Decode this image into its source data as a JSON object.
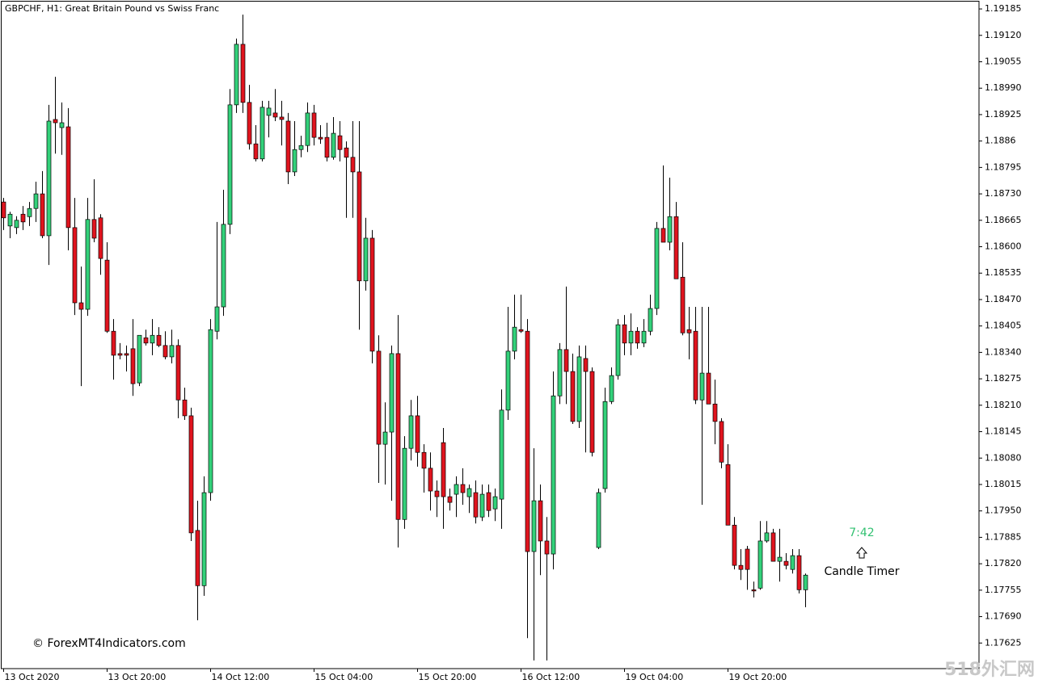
{
  "chart_data": {
    "type": "candlestick",
    "title": "GBPCHF, H1:  Great Britain Pound vs Swiss Franc",
    "categories": [
      "13 Oct 2020",
      null,
      null,
      null,
      null,
      null,
      null,
      null,
      null,
      null,
      null,
      null,
      null,
      null,
      null,
      null,
      "13 Oct 20:00",
      null,
      null,
      null,
      null,
      null,
      null,
      null,
      null,
      null,
      null,
      null,
      null,
      null,
      null,
      null,
      "14 Oct 12:00",
      null,
      null,
      null,
      null,
      null,
      null,
      null,
      null,
      null,
      null,
      null,
      null,
      null,
      null,
      null,
      "15 Oct 04:00",
      null,
      null,
      null,
      null,
      null,
      null,
      null,
      null,
      null,
      null,
      null,
      null,
      null,
      null,
      null,
      "15 Oct 20:00",
      null,
      null,
      null,
      null,
      null,
      null,
      null,
      null,
      null,
      null,
      null,
      null,
      null,
      null,
      null,
      "16 Oct 12:00",
      null,
      null,
      null,
      null,
      null,
      null,
      null,
      null,
      null,
      null,
      null,
      null,
      null,
      null,
      null,
      "19 Oct 04:00",
      null,
      null,
      null,
      null,
      null,
      null,
      null,
      null,
      null,
      null,
      null,
      null,
      null,
      null,
      null,
      "19 Oct 20:00",
      null,
      null,
      null,
      null,
      null,
      null,
      null,
      null,
      null,
      null,
      null,
      null
    ],
    "open": [
      1.1871,
      1.18651,
      1.18647,
      1.1868,
      1.18674,
      1.18694,
      1.1873,
      1.18627,
      1.18913,
      1.18893,
      1.18895,
      1.18647,
      1.18462,
      1.18446,
      1.18667,
      1.18671,
      1.18567,
      1.18392,
      1.18337,
      1.18337,
      1.18349,
      1.18265,
      1.18376,
      1.18363,
      1.18382,
      1.18357,
      1.18329,
      1.18357,
      1.18223,
      1.18184,
      1.17902,
      1.17766,
      1.17995,
      1.18392,
      1.18452,
      1.18655,
      1.18949,
      1.19098,
      1.18955,
      1.18853,
      1.18816,
      1.18923,
      1.18929,
      1.18919,
      1.18909,
      1.18784,
      1.18839,
      1.18849,
      1.18929,
      1.18869,
      1.18869,
      1.1882,
      1.18873,
      1.18843,
      1.1882,
      1.18784,
      1.18516,
      1.18621,
      1.18343,
      1.18114,
      1.18144,
      1.18337,
      1.17929,
      1.18104,
      1.18184,
      1.18094,
      1.18055,
      1.17999,
      1.18118,
      1.17985,
      1.17991,
      1.18015,
      1.17985,
      1.17995,
      1.17935,
      1.17995,
      1.17955,
      1.17979,
      1.18198,
      1.18343,
      1.18396,
      1.18392,
      1.1785,
      1.17975,
      1.17876,
      1.17844,
      1.18233,
      1.18347,
      1.18293,
      1.1817,
      1.18325,
      1.18293,
      1.1786,
      1.18005,
      1.18219,
      1.18283,
      1.18408,
      1.18363,
      1.18392,
      1.18363,
      1.18392,
      1.18448,
      1.18645,
      1.18611,
      1.18674,
      1.18525,
      1.18396,
      1.18392,
      1.18223,
      1.18289,
      1.18213,
      1.1817,
      1.18064,
      1.17915,
      1.17816,
      1.17856,
      1.17756,
      1.1776,
      1.17876,
      1.17896,
      1.17826,
      1.17826,
      1.17806,
      1.1784,
      1.17756
    ],
    "high": [
      1.1872,
      1.18686,
      1.18675,
      1.187,
      1.1871,
      1.1876,
      1.18786,
      1.18949,
      1.19018,
      1.18955,
      1.18941,
      1.1872,
      1.18551,
      1.1872,
      1.18766,
      1.1868,
      1.18611,
      1.18422,
      1.18363,
      1.18357,
      1.18422,
      1.18382,
      1.18396,
      1.18422,
      1.18402,
      1.18392,
      1.18396,
      1.18372,
      1.18253,
      1.18204,
      1.17975,
      1.18035,
      1.18422,
      1.18661,
      1.1874,
      1.18988,
      1.19112,
      1.19171,
      1.18998,
      1.18899,
      1.18959,
      1.18959,
      1.18988,
      1.18959,
      1.18929,
      1.18909,
      1.18873,
      1.18955,
      1.18949,
      1.18899,
      1.18905,
      1.18919,
      1.18909,
      1.18859,
      1.18909,
      1.18909,
      1.18671,
      1.18641,
      1.18382,
      1.18217,
      1.18357,
      1.18432,
      1.18134,
      1.18223,
      1.18233,
      1.18114,
      1.18094,
      1.18025,
      1.18154,
      1.18005,
      1.18035,
      1.18055,
      1.18015,
      1.18025,
      1.18015,
      1.18015,
      1.18005,
      1.18249,
      1.18452,
      1.18482,
      1.18482,
      1.18422,
      1.18104,
      1.18015,
      1.17935,
      1.18293,
      1.18363,
      1.18502,
      1.18337,
      1.18357,
      1.18357,
      1.18303,
      1.18005,
      1.18253,
      1.18303,
      1.18422,
      1.18432,
      1.18436,
      1.18402,
      1.18422,
      1.18482,
      1.18661,
      1.188,
      1.1877,
      1.1871,
      1.18611,
      1.18452,
      1.18452,
      1.18452,
      1.18452,
      1.18273,
      1.18178,
      1.18114,
      1.17935,
      1.17856,
      1.17864,
      1.17776,
      1.17925,
      1.17925,
      1.17906,
      1.17906,
      1.17846,
      1.17856,
      1.17856,
      1.17796
    ],
    "low": [
      1.18641,
      1.18621,
      1.18631,
      1.18641,
      1.18651,
      1.18661,
      1.18621,
      1.18555,
      1.18829,
      1.18826,
      1.18591,
      1.18432,
      1.18257,
      1.1843,
      1.18611,
      1.18531,
      1.18388,
      1.18273,
      1.18323,
      1.18293,
      1.18233,
      1.18257,
      1.18357,
      1.18333,
      1.18353,
      1.18323,
      1.18313,
      1.18178,
      1.18174,
      1.17876,
      1.17681,
      1.17741,
      1.17975,
      1.18372,
      1.1843,
      1.18631,
      1.18929,
      1.18929,
      1.18839,
      1.1881,
      1.1881,
      1.18869,
      1.18909,
      1.18849,
      1.18754,
      1.18774,
      1.1882,
      1.18833,
      1.18849,
      1.18853,
      1.1881,
      1.18814,
      1.1881,
      1.18671,
      1.18671,
      1.18396,
      1.18492,
      1.18313,
      1.18019,
      1.18015,
      1.17975,
      1.1786,
      1.17906,
      1.18074,
      1.18059,
      1.17995,
      1.17951,
      1.17935,
      1.17906,
      1.17951,
      1.17935,
      1.17965,
      1.17945,
      1.17919,
      1.17925,
      1.17935,
      1.17925,
      1.17906,
      1.18174,
      1.18323,
      1.18388,
      1.17637,
      1.17582,
      1.17792,
      1.17582,
      1.17806,
      1.18213,
      1.18213,
      1.18164,
      1.18154,
      1.18094,
      1.18084,
      1.17856,
      1.17995,
      1.18213,
      1.18273,
      1.18333,
      1.18333,
      1.18349,
      1.18353,
      1.18382,
      1.18432,
      1.18611,
      1.18591,
      1.18521,
      1.18382,
      1.18323,
      1.18213,
      1.17965,
      1.18213,
      1.18114,
      1.18055,
      1.17915,
      1.17806,
      1.1778,
      1.17756,
      1.17737,
      1.17756,
      1.17872,
      1.17826,
      1.17776,
      1.17806,
      1.17796,
      1.17747,
      1.17713
    ],
    "close": [
      1.18671,
      1.1868,
      1.18665,
      1.18661,
      1.18694,
      1.1873,
      1.18627,
      1.18909,
      1.18905,
      1.18905,
      1.18647,
      1.18462,
      1.18446,
      1.18667,
      1.18621,
      1.18571,
      1.18392,
      1.18333,
      1.18333,
      1.18333,
      1.18263,
      1.18382,
      1.18363,
      1.18382,
      1.18357,
      1.18329,
      1.18357,
      1.18223,
      1.18184,
      1.17896,
      1.17766,
      1.17995,
      1.18396,
      1.18452,
      1.18655,
      1.18949,
      1.19098,
      1.18955,
      1.18853,
      1.18816,
      1.18943,
      1.18941,
      1.18919,
      1.18913,
      1.18784,
      1.18839,
      1.18849,
      1.18929,
      1.18869,
      1.18865,
      1.1882,
      1.18879,
      1.18839,
      1.1882,
      1.18784,
      1.18516,
      1.18621,
      1.18343,
      1.18114,
      1.18144,
      1.18337,
      1.17929,
      1.18104,
      1.18184,
      1.18094,
      1.18055,
      1.17999,
      1.17985,
      1.17985,
      1.17971,
      1.18015,
      1.17995,
      1.18005,
      1.17935,
      1.17991,
      1.17951,
      1.17985,
      1.18198,
      1.18343,
      1.18402,
      1.18392,
      1.1785,
      1.17975,
      1.17876,
      1.17844,
      1.18233,
      1.18347,
      1.18293,
      1.1817,
      1.18329,
      1.18293,
      1.18094,
      1.17995,
      1.18219,
      1.18283,
      1.18408,
      1.18363,
      1.18392,
      1.18363,
      1.18392,
      1.18448,
      1.18645,
      1.18611,
      1.18674,
      1.18521,
      1.18388,
      1.18388,
      1.18223,
      1.18289,
      1.18213,
      1.1817,
      1.1807,
      1.17915,
      1.17816,
      1.17806,
      1.17806,
      1.17753,
      1.17876,
      1.17896,
      1.17826,
      1.17836,
      1.17816,
      1.1784,
      1.17756,
      1.17792
    ],
    "up_color": "#33d17a",
    "down_color": "#e0141e",
    "ylim": [
      1.17562,
      1.19203
    ],
    "yticks": [
      1.19185,
      {
        "value": 1.1912,
        "label": "1.19120"
      },
      1.19055,
      {
        "value": 1.1899,
        "label": "1.18990"
      },
      1.18925,
      1.1886,
      1.18795,
      {
        "value": 1.1873,
        "label": "1.18730"
      },
      1.18665,
      {
        "value": 1.186,
        "label": "1.18600"
      },
      1.18535,
      {
        "value": 1.1847,
        "label": "1.18470"
      },
      1.18405,
      {
        "value": 1.1834,
        "label": "1.18340"
      },
      1.18275,
      {
        "value": 1.1821,
        "label": "1.18210"
      },
      1.18145,
      {
        "value": 1.1808,
        "label": "1.18080"
      },
      1.18015,
      {
        "value": 1.1795,
        "label": "1.17950"
      },
      1.17885,
      {
        "value": 1.1782,
        "label": "1.17820"
      },
      1.17755,
      {
        "value": 1.1769,
        "label": "1.17690"
      },
      1.17625
    ],
    "annotations": {
      "timer": "7:42",
      "timer_label": "Candle Timer",
      "copyright": "© ForexMT4Indicators.com",
      "watermark": "518外汇网"
    }
  }
}
